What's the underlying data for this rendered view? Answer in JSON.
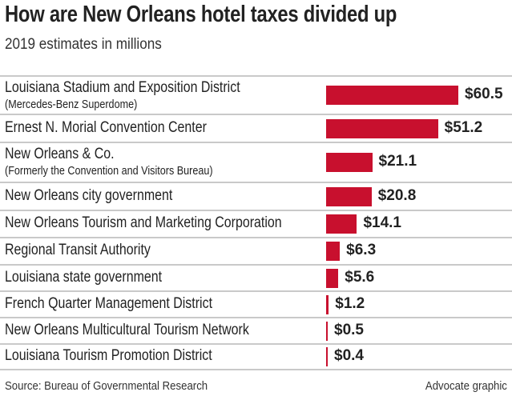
{
  "chart_data": {
    "type": "bar",
    "orientation": "horizontal",
    "title": "How are New Orleans hotel taxes divided up",
    "subtitle": "2019 estimates in millions",
    "categories": [
      {
        "label": "Louisiana Stadium and Exposition District",
        "note": "(Mercedes-Benz Superdome)"
      },
      {
        "label": "Ernest N. Morial Convention Center"
      },
      {
        "label": "New Orleans & Co.",
        "note": "(Formerly the Convention and Visitors Bureau)"
      },
      {
        "label": "New Orleans city government"
      },
      {
        "label": "New Orleans Tourism and Marketing Corporation"
      },
      {
        "label": "Regional Transit Authority"
      },
      {
        "label": "Louisiana state government"
      },
      {
        "label": "French Quarter Management District"
      },
      {
        "label": "New Orleans Multicultural Tourism Network"
      },
      {
        "label": "Louisiana Tourism Promotion District"
      }
    ],
    "values": [
      60.5,
      51.2,
      21.1,
      20.8,
      14.1,
      6.3,
      5.6,
      1.2,
      0.5,
      0.4
    ],
    "value_labels": [
      "$60.5",
      "$51.2",
      "$21.1",
      "$20.8",
      "$14.1",
      "$6.3",
      "$5.6",
      "$1.2",
      "$0.5",
      "$0.4"
    ],
    "bar_color": "#c8102e",
    "grid": false,
    "source": "Source: Bureau of Governmental Research",
    "credit": "Advocate graphic"
  }
}
